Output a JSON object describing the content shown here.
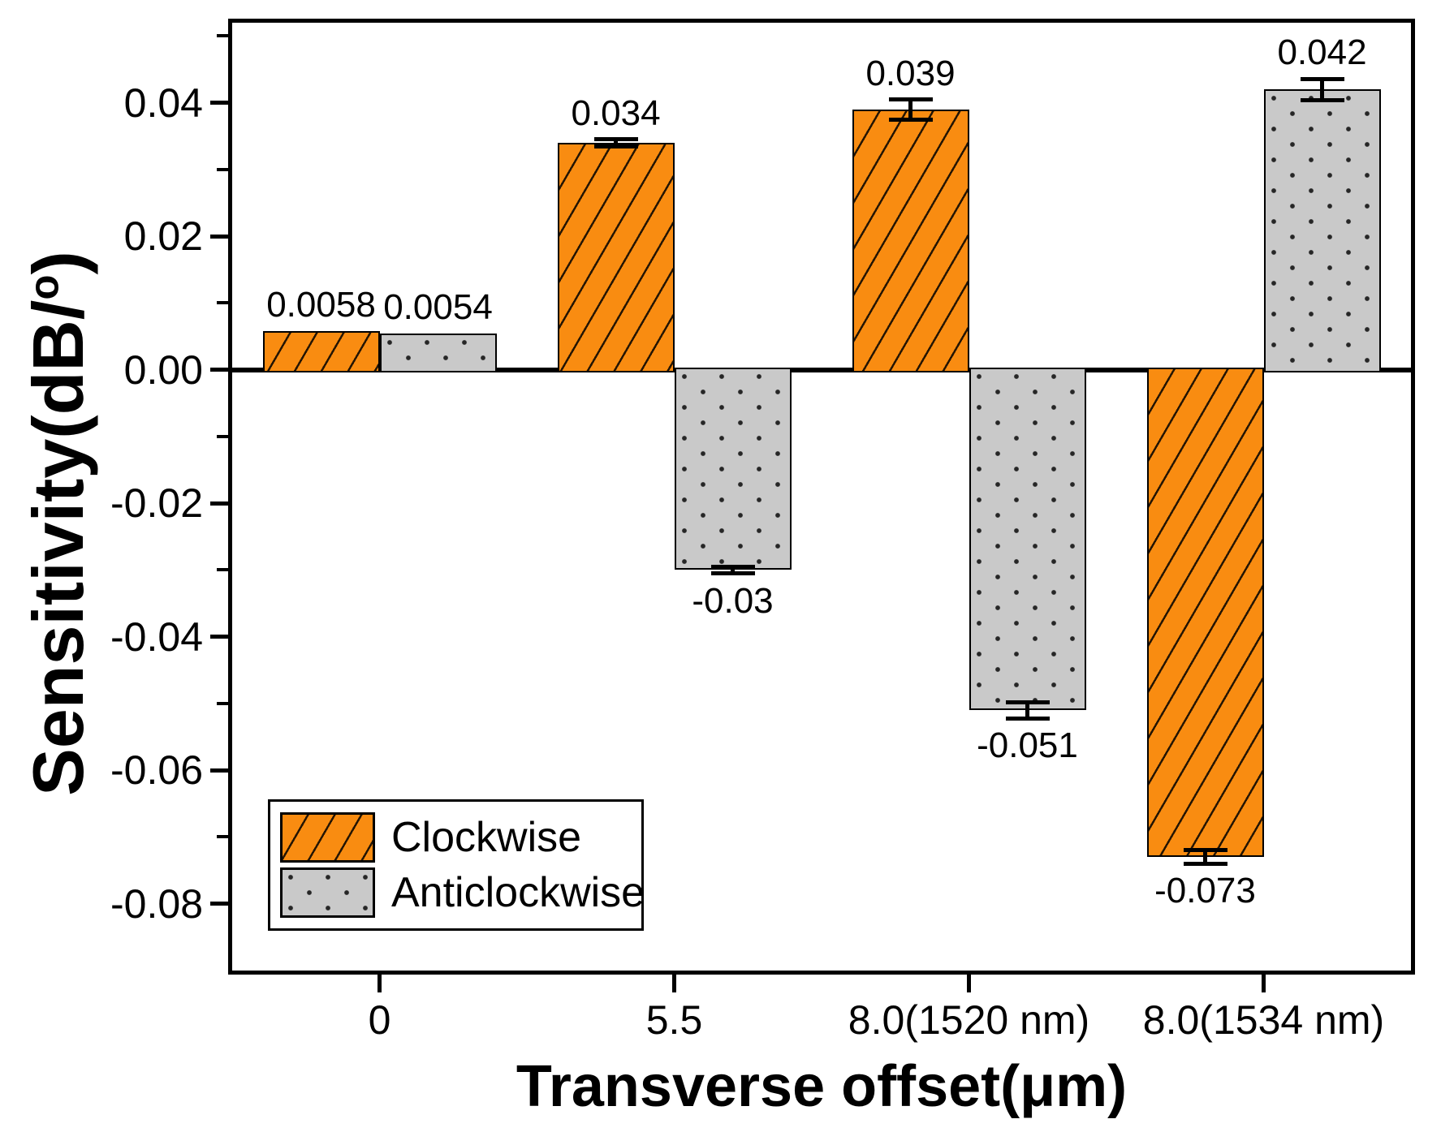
{
  "chart_data": {
    "type": "bar",
    "title": "",
    "xlabel": "Transverse offset(μm)",
    "ylabel": {
      "prefix": "Sensitivity(dB/",
      "sup": "o",
      "suffix": ")"
    },
    "categories": [
      "0",
      "5.5",
      "8.0(1520 nm)",
      "8.0(1534 nm)"
    ],
    "series": [
      {
        "name": "Clockwise",
        "color": "#f98c11",
        "pattern": "diagonal-hatch",
        "values": [
          0.0058,
          0.034,
          0.039,
          -0.073
        ],
        "errors": [
          0,
          0.0005,
          0.0015,
          0.001
        ],
        "value_labels": [
          "0.0058",
          "0.034",
          "0.039",
          "-0.073"
        ]
      },
      {
        "name": "Anticlockwise",
        "color": "#c9c9c9",
        "pattern": "dots",
        "values": [
          0.0054,
          -0.03,
          -0.051,
          0.042
        ],
        "errors": [
          0,
          0.0005,
          0.0012,
          0.0016
        ],
        "value_labels": [
          "0.0054",
          "-0.03",
          "-0.051",
          "0.042"
        ]
      }
    ],
    "ylim": [
      -0.09,
      0.052
    ],
    "yticks": [
      {
        "v": 0.04,
        "label": "0.04"
      },
      {
        "v": 0.02,
        "label": "0.02"
      },
      {
        "v": 0.0,
        "label": "0.00"
      },
      {
        "v": -0.02,
        "label": "-0.02"
      },
      {
        "v": -0.04,
        "label": "-0.04"
      },
      {
        "v": -0.06,
        "label": "-0.06"
      },
      {
        "v": -0.08,
        "label": "-0.08"
      }
    ],
    "minor_yticks": [
      0.05,
      0.03,
      0.01,
      -0.01,
      -0.03,
      -0.05,
      -0.07
    ],
    "grid": false,
    "legend_position": "bottom-left",
    "axis_color": "#000000",
    "error_bar_color": "#000000"
  }
}
